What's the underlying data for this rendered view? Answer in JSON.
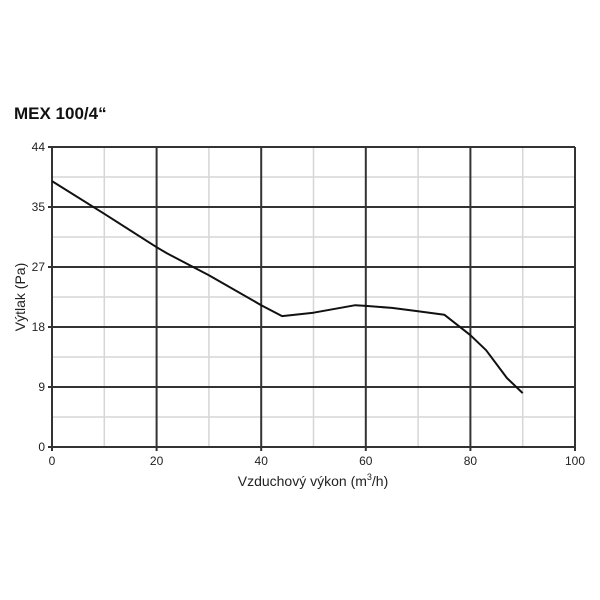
{
  "chart_data": {
    "type": "line",
    "title": "MEX 100/4“",
    "xlabel": "Vzduchový výkon (m³/h)",
    "xlabel_parts": {
      "pre": "Vzduchový výkon (m",
      "sup": "3",
      "post": "/h)"
    },
    "ylabel": "Výtlak (Pa)",
    "xlim": [
      0,
      100
    ],
    "ylim": [
      0,
      44
    ],
    "xticks": [
      0,
      20,
      40,
      60,
      80,
      100
    ],
    "yticks": [
      0,
      9,
      18,
      27,
      35,
      44
    ],
    "grid": true,
    "series": [
      {
        "x": [
          0,
          10,
          20,
          22,
          30,
          40,
          44,
          50,
          58,
          60,
          65,
          70,
          75,
          80,
          83,
          87,
          90
        ],
        "y": [
          39.0,
          34.2,
          29.3,
          28.4,
          25.2,
          20.8,
          19.2,
          19.7,
          20.8,
          20.7,
          20.4,
          19.9,
          19.4,
          16.4,
          14.2,
          10.1,
          7.9
        ]
      }
    ],
    "colors": {
      "line": "#111111",
      "major_grid": "#333333",
      "minor_grid": "#d6d6d6"
    }
  }
}
